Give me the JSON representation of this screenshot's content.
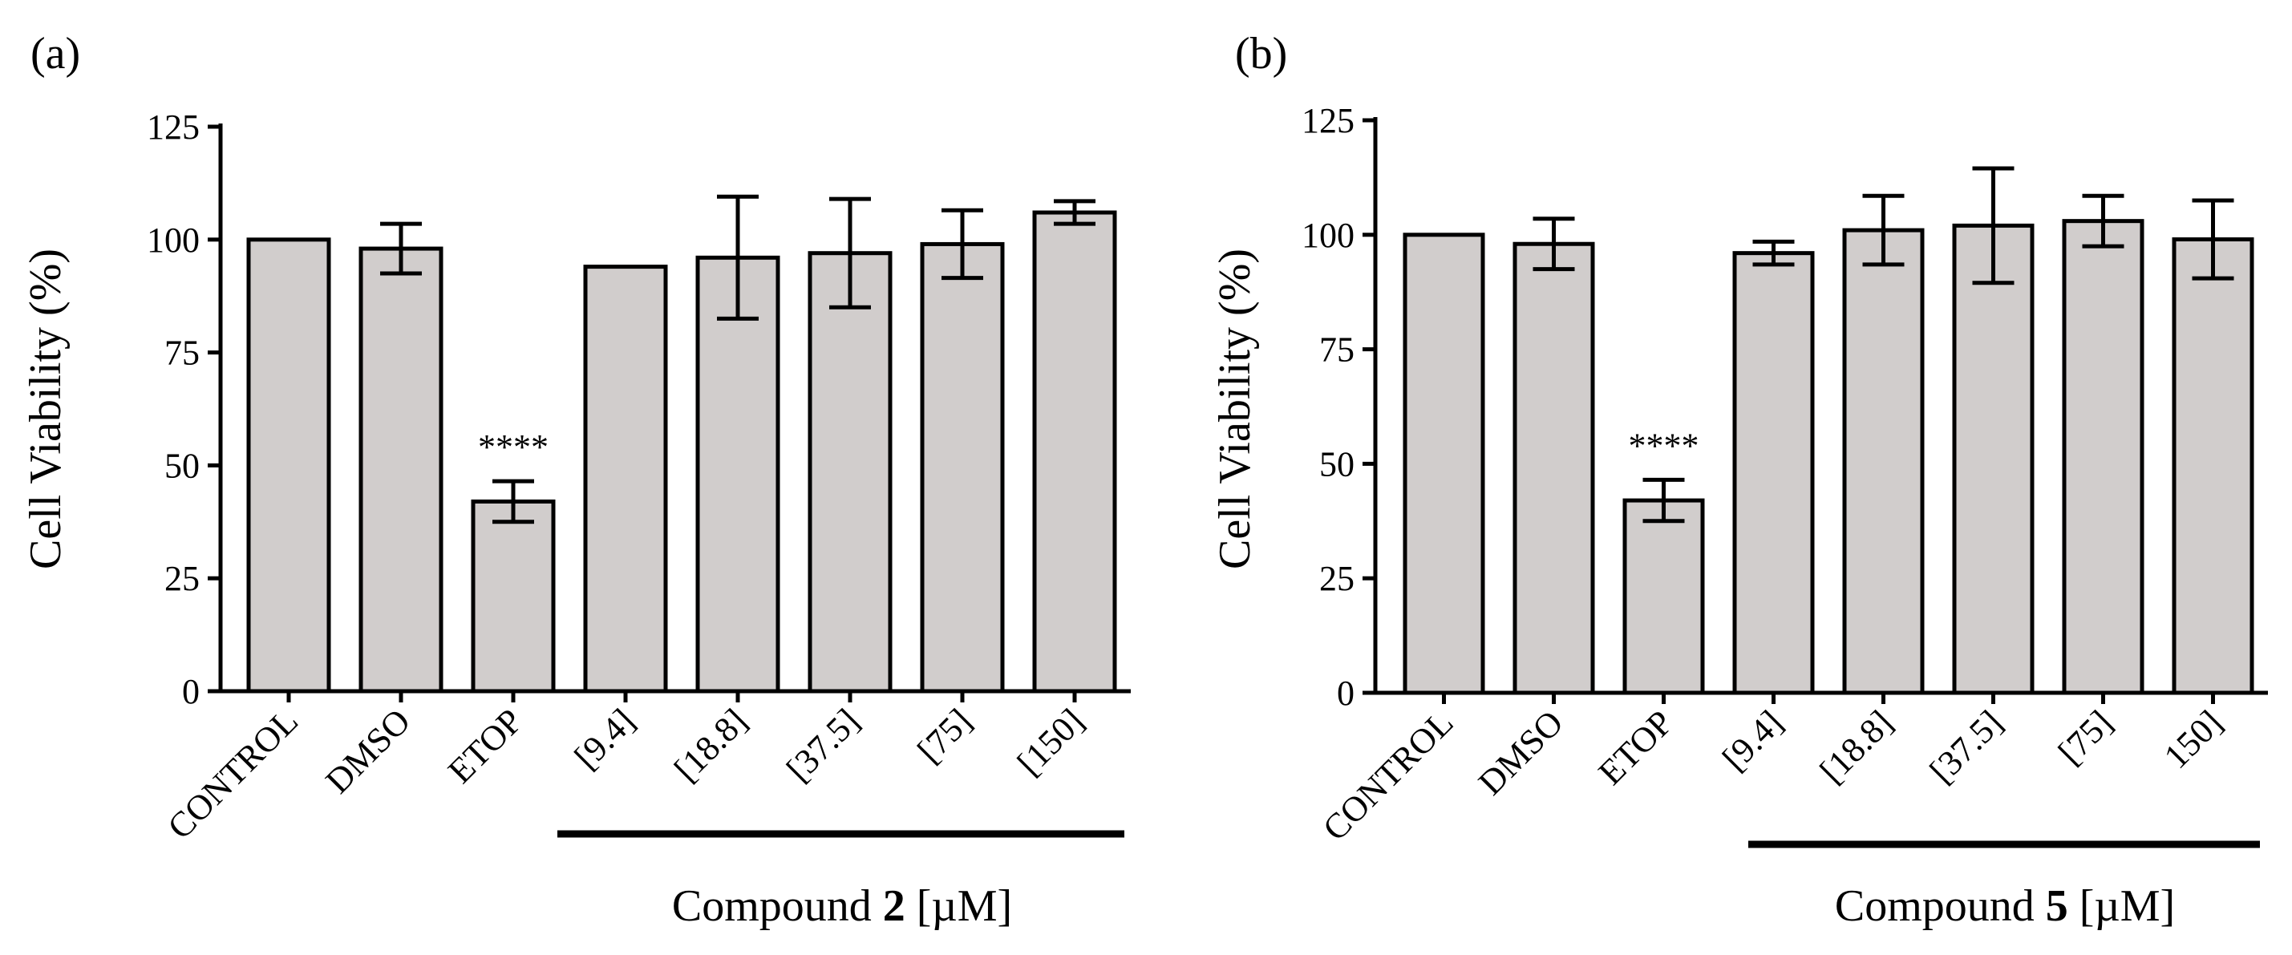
{
  "figure_panels": [
    "(a)",
    "(b)"
  ],
  "chart_data": [
    {
      "type": "bar",
      "panel_label": "(a)",
      "ylabel": "Cell Viability (%)",
      "ylim": [
        0,
        125
      ],
      "yticks": [
        0,
        25,
        50,
        75,
        100,
        125
      ],
      "categories": [
        "CONTROL",
        "DMSO",
        "ETOP",
        "[9.4]",
        "[18.8]",
        "[37.5]",
        "[75]",
        "[150]"
      ],
      "values": [
        100,
        98,
        42,
        94,
        96,
        97,
        99,
        106
      ],
      "errors": [
        0,
        5.5,
        4.5,
        0,
        13.5,
        12,
        7.5,
        2.5
      ],
      "annotations": [
        {
          "category": "ETOP",
          "text": "****"
        }
      ],
      "group_label": {
        "prefix": "Compound ",
        "bold": "2",
        "suffix": " [µM]",
        "start": "[9.4]",
        "end": "[150]"
      }
    },
    {
      "type": "bar",
      "panel_label": "(b)",
      "ylabel": "Cell Viability (%)",
      "ylim": [
        0,
        125
      ],
      "yticks": [
        0,
        25,
        50,
        75,
        100,
        125
      ],
      "categories": [
        "CONTROL",
        "DMSO",
        "ETOP",
        "[9.4]",
        "[18.8]",
        "[37.5]",
        "[75]",
        "150]"
      ],
      "values": [
        100,
        98,
        42,
        96,
        101,
        102,
        103,
        99
      ],
      "errors": [
        0,
        5.5,
        4.5,
        2.5,
        7.5,
        12.5,
        5.5,
        8.5
      ],
      "annotations": [
        {
          "category": "ETOP",
          "text": "****"
        }
      ],
      "group_label": {
        "prefix": "Compound ",
        "bold": "5",
        "suffix": " [µM]",
        "start": "[9.4]",
        "end": "150]"
      }
    }
  ]
}
